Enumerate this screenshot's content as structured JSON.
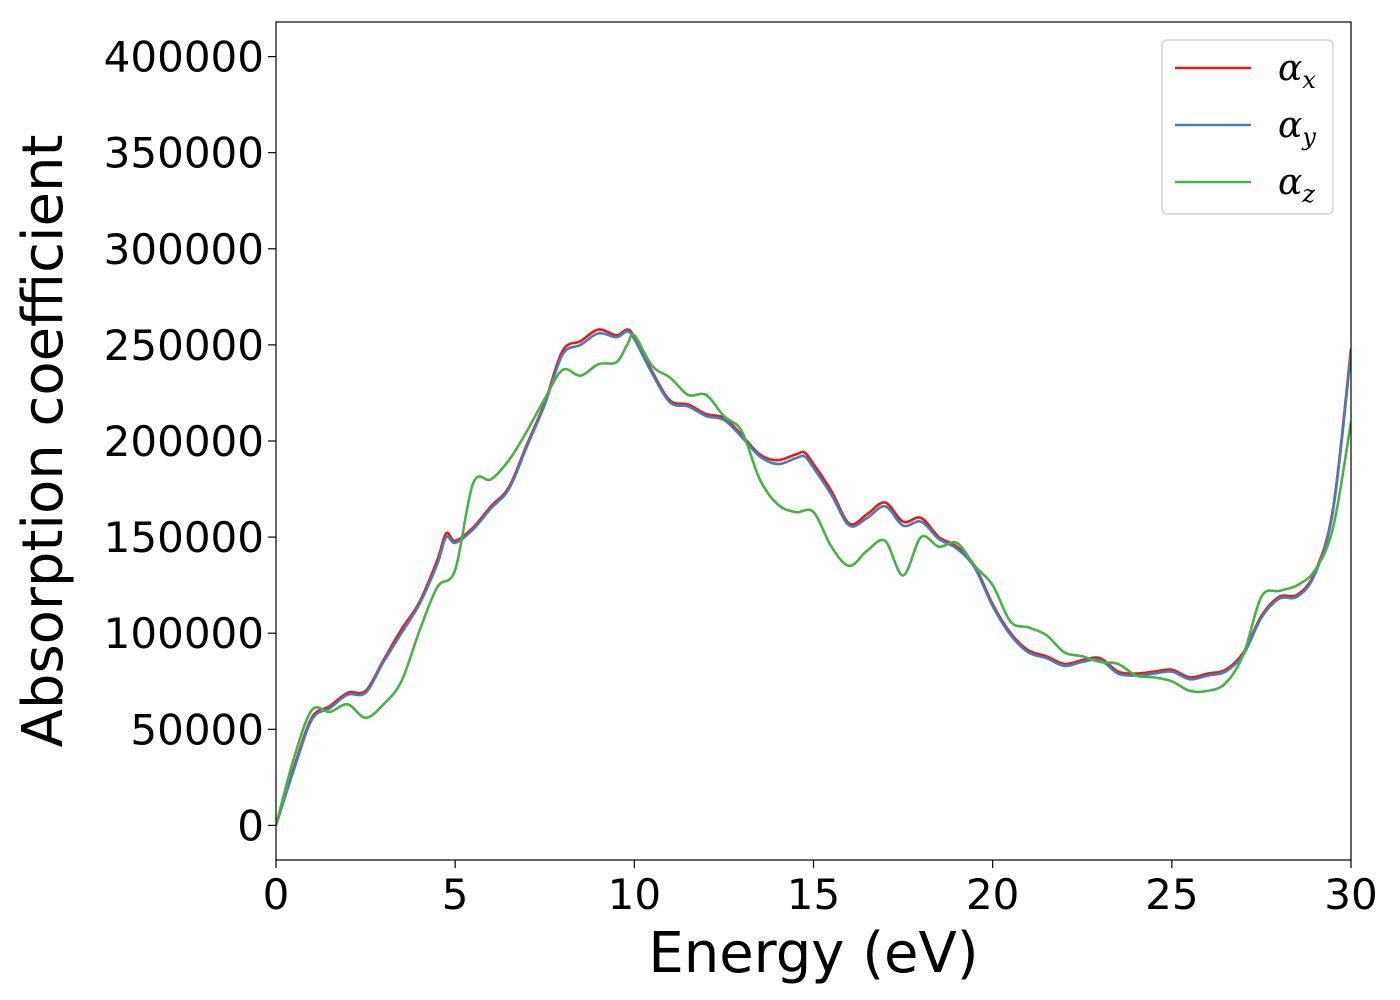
{
  "chart_data": {
    "type": "line",
    "xlabel": "Energy (eV)",
    "ylabel": "Absorption coefficient",
    "xlim": [
      0,
      30
    ],
    "ylim": [
      -18000,
      418000
    ],
    "xticks": [
      0,
      5,
      10,
      15,
      20,
      25,
      30
    ],
    "yticks": [
      0,
      50000,
      100000,
      150000,
      200000,
      250000,
      300000,
      350000,
      400000
    ],
    "grid": false,
    "legend_position": "top-right",
    "series": [
      {
        "name": "α",
        "subscript": "x",
        "color": "#e41a1c",
        "x": [
          0,
          0.5,
          1.0,
          1.5,
          2.0,
          2.5,
          3.0,
          3.5,
          4.0,
          4.5,
          4.75,
          5.0,
          5.5,
          6.0,
          6.5,
          7.0,
          7.5,
          8.0,
          8.5,
          9.0,
          9.5,
          9.8,
          10.0,
          10.5,
          11.0,
          11.5,
          12.0,
          12.5,
          13.0,
          13.5,
          14.0,
          14.5,
          14.75,
          15.0,
          15.5,
          16.0,
          16.5,
          17.0,
          17.5,
          18.0,
          18.5,
          19.0,
          19.5,
          20.0,
          20.5,
          21.0,
          21.5,
          22.0,
          22.5,
          23.0,
          23.5,
          24.0,
          24.5,
          25.0,
          25.5,
          26.0,
          26.5,
          27.0,
          27.5,
          28.0,
          28.5,
          29.0,
          29.5,
          30.0
        ],
        "y": [
          0,
          30000,
          56000,
          62000,
          69000,
          70000,
          86000,
          102000,
          116000,
          138000,
          152000,
          148000,
          155000,
          166000,
          176000,
          198000,
          220000,
          247000,
          252000,
          258000,
          255000,
          258000,
          254000,
          236000,
          221000,
          219000,
          214000,
          212000,
          203000,
          193000,
          190000,
          193000,
          194000,
          188000,
          174000,
          157000,
          162000,
          168000,
          158000,
          160000,
          150000,
          145000,
          135000,
          115000,
          100000,
          91000,
          88000,
          84000,
          86000,
          87000,
          80000,
          79000,
          80000,
          81000,
          77000,
          79000,
          81000,
          90000,
          109000,
          119000,
          120000,
          132000,
          165000,
          248000
        ]
      },
      {
        "name": "α",
        "subscript": "y",
        "color": "#4a7db3",
        "x": [
          0,
          0.5,
          1.0,
          1.5,
          2.0,
          2.5,
          3.0,
          3.5,
          4.0,
          4.5,
          4.75,
          5.0,
          5.5,
          6.0,
          6.5,
          7.0,
          7.5,
          8.0,
          8.5,
          9.0,
          9.5,
          9.8,
          10.0,
          10.5,
          11.0,
          11.5,
          12.0,
          12.5,
          13.0,
          13.5,
          14.0,
          14.5,
          14.75,
          15.0,
          15.5,
          16.0,
          16.5,
          17.0,
          17.5,
          18.0,
          18.5,
          19.0,
          19.5,
          20.0,
          20.5,
          21.0,
          21.5,
          22.0,
          22.5,
          23.0,
          23.5,
          24.0,
          24.5,
          25.0,
          25.5,
          26.0,
          26.5,
          27.0,
          27.5,
          28.0,
          28.5,
          29.0,
          29.5,
          30.0
        ],
        "y": [
          0,
          29000,
          55000,
          61000,
          68000,
          69000,
          85000,
          100000,
          115000,
          136000,
          150000,
          147000,
          154000,
          165000,
          175000,
          197000,
          219000,
          245000,
          250000,
          256000,
          254000,
          257000,
          253000,
          235000,
          220000,
          218000,
          213000,
          211000,
          202000,
          192000,
          188000,
          191000,
          192000,
          186000,
          172000,
          156000,
          160000,
          166000,
          156000,
          158000,
          149000,
          144000,
          134000,
          114000,
          99000,
          90000,
          87000,
          83000,
          85000,
          86000,
          79000,
          78000,
          79000,
          80000,
          76000,
          78000,
          80000,
          89000,
          108000,
          118000,
          119000,
          131000,
          164000,
          246000
        ]
      },
      {
        "name": "α",
        "subscript": "z",
        "color": "#4daf4a",
        "x": [
          0,
          0.5,
          1.0,
          1.5,
          2.0,
          2.5,
          3.0,
          3.5,
          4.0,
          4.5,
          5.0,
          5.5,
          6.0,
          6.5,
          7.0,
          7.5,
          8.0,
          8.5,
          9.0,
          9.5,
          9.8,
          10.0,
          10.5,
          11.0,
          11.5,
          12.0,
          12.5,
          13.0,
          13.5,
          14.0,
          14.5,
          15.0,
          15.5,
          16.0,
          16.5,
          17.0,
          17.5,
          18.0,
          18.5,
          19.0,
          19.5,
          20.0,
          20.5,
          21.0,
          21.5,
          22.0,
          22.5,
          23.0,
          23.5,
          24.0,
          24.5,
          25.0,
          25.5,
          26.0,
          26.5,
          27.0,
          27.5,
          28.0,
          28.5,
          29.0,
          29.5,
          30.0
        ],
        "y": [
          0,
          35000,
          60000,
          59000,
          63000,
          56000,
          63000,
          75000,
          101000,
          124000,
          133000,
          178000,
          180000,
          190000,
          205000,
          222000,
          237000,
          234000,
          240000,
          241000,
          250000,
          255000,
          239000,
          233000,
          224000,
          224000,
          213000,
          205000,
          180000,
          167000,
          163000,
          163000,
          145000,
          135000,
          143000,
          148000,
          130000,
          150000,
          145000,
          147000,
          135000,
          125000,
          106000,
          103000,
          99000,
          90000,
          88000,
          85000,
          84000,
          78000,
          77000,
          75000,
          70000,
          70000,
          74000,
          89000,
          119000,
          122000,
          125000,
          133000,
          155000,
          210000
        ]
      }
    ]
  }
}
